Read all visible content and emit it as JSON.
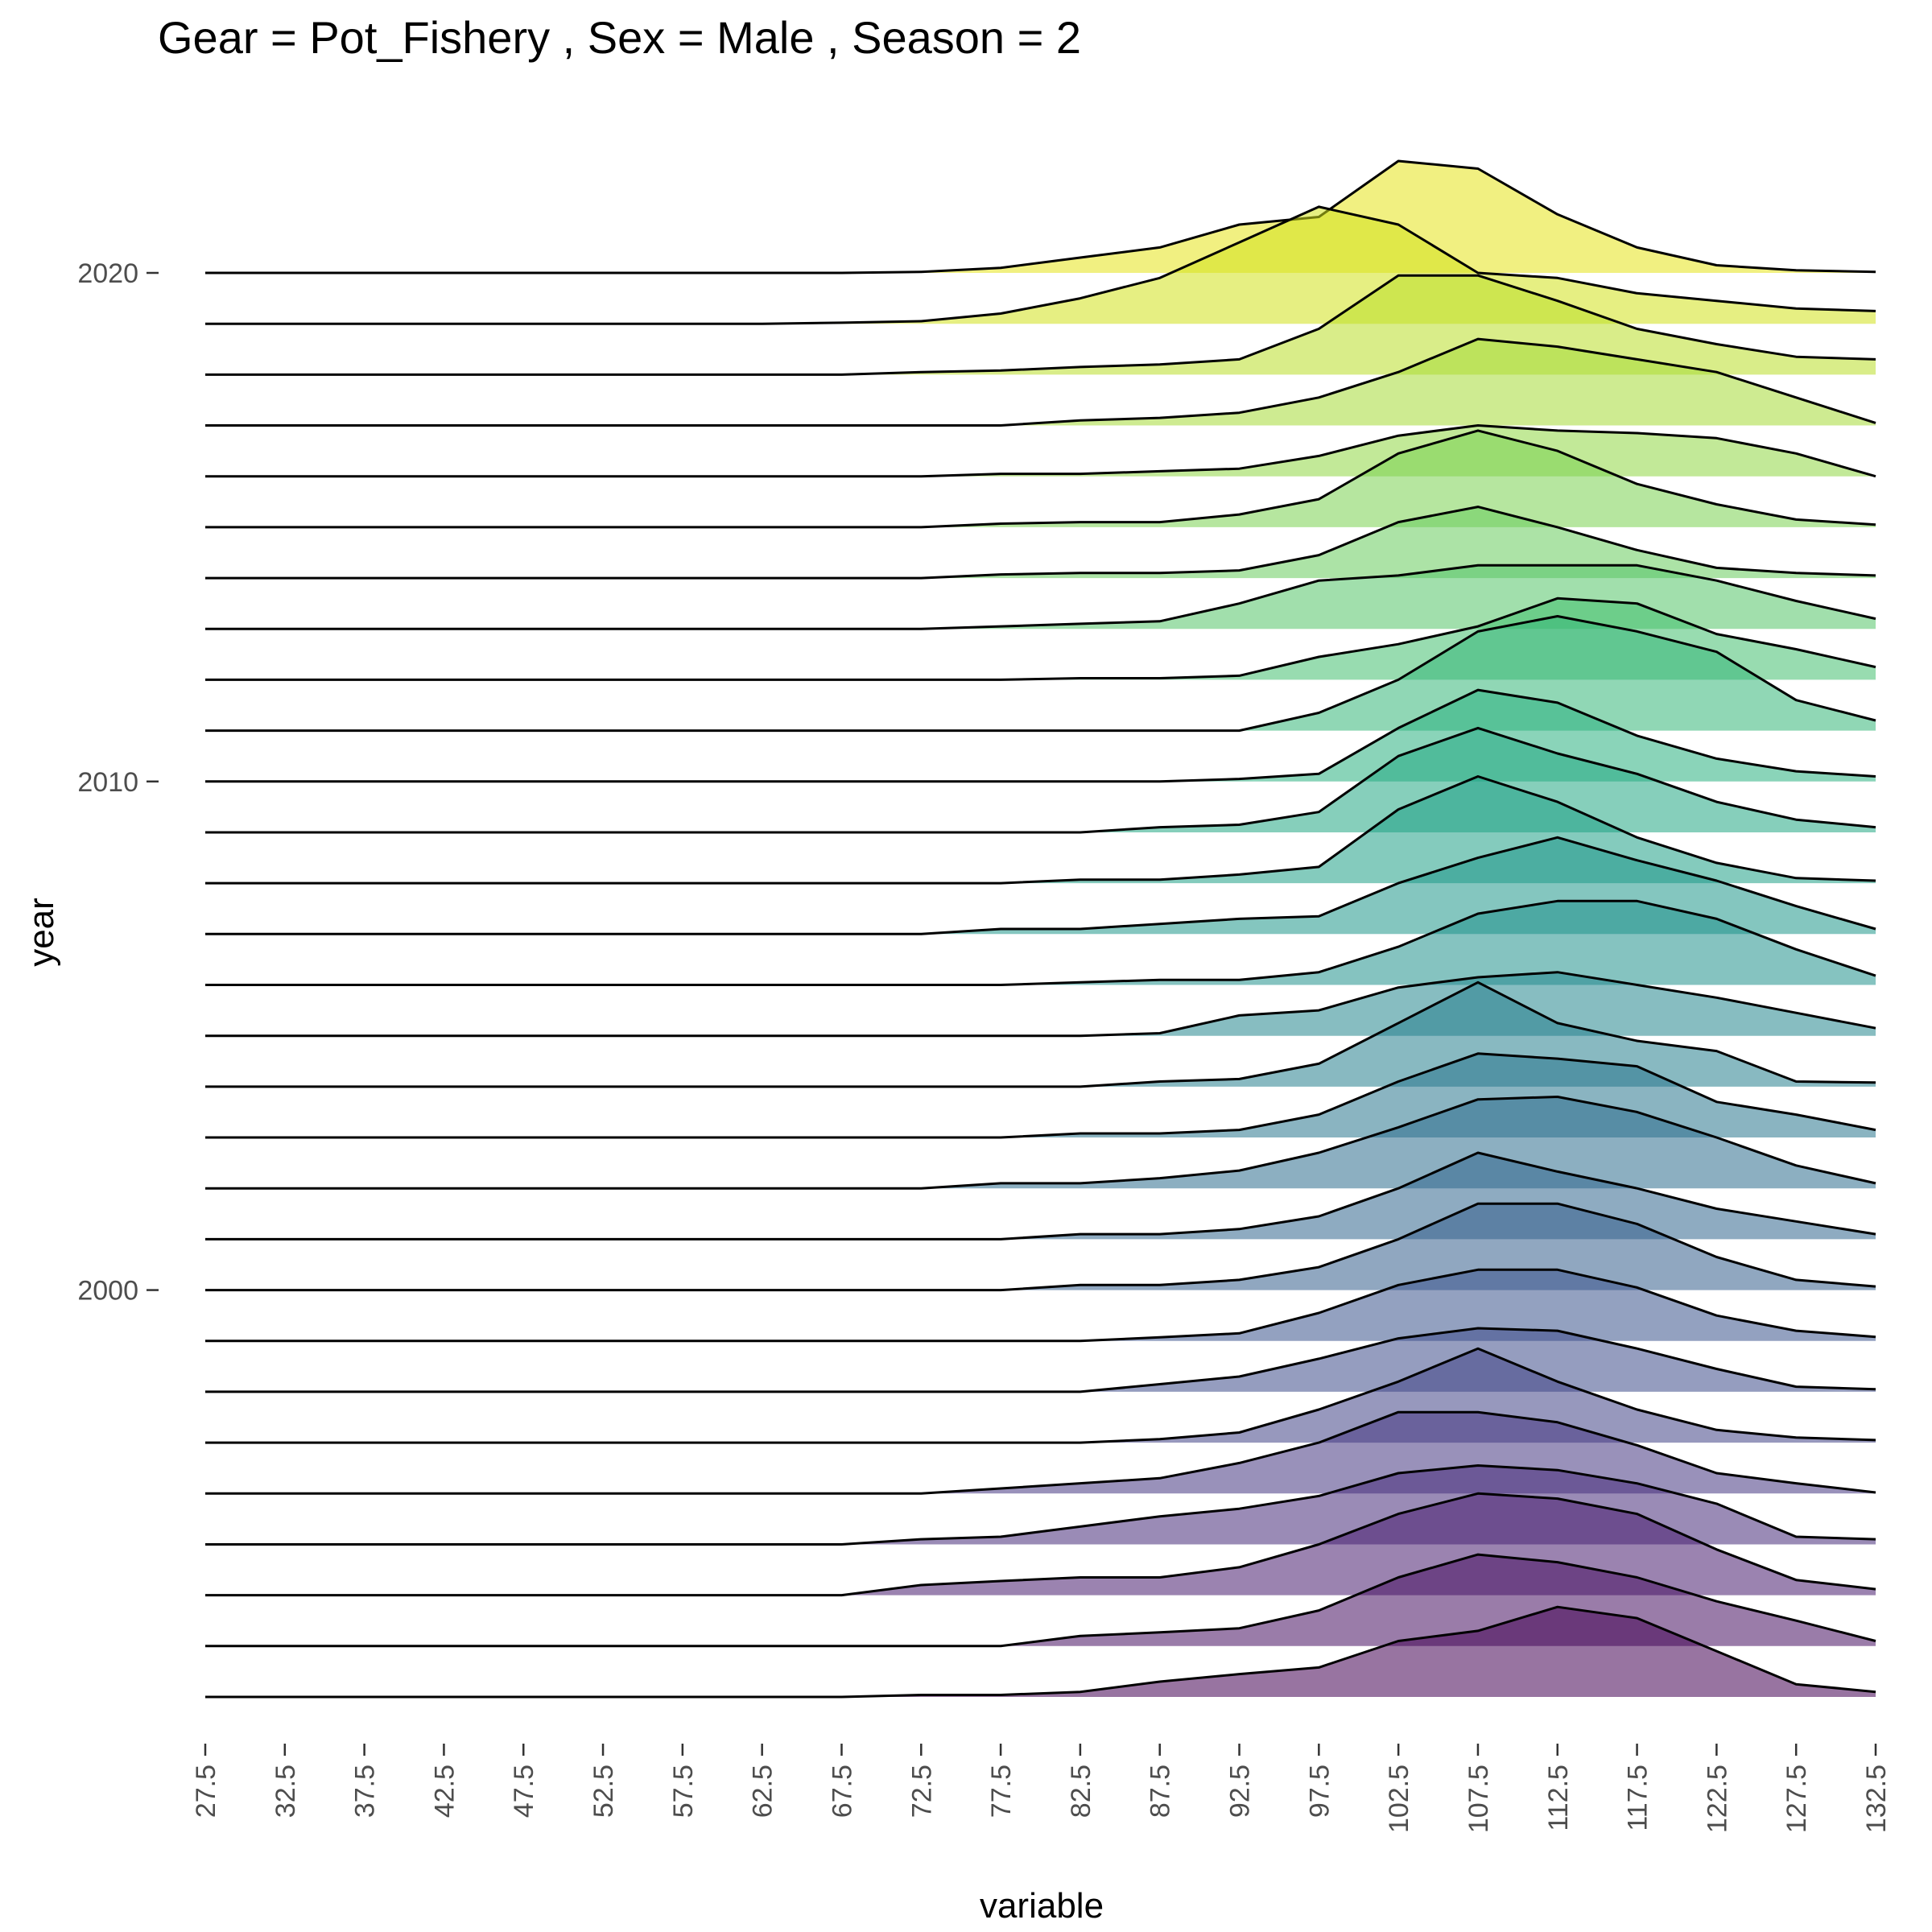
{
  "chart_data": {
    "type": "ridgeline",
    "title": "Gear = Pot_Fishery , Sex = Male , Season = 2",
    "xlabel": "variable",
    "ylabel": "year",
    "x": [
      27.5,
      32.5,
      37.5,
      42.5,
      47.5,
      52.5,
      57.5,
      62.5,
      67.5,
      72.5,
      77.5,
      82.5,
      87.5,
      92.5,
      97.5,
      102.5,
      107.5,
      112.5,
      117.5,
      122.5,
      127.5,
      132.5
    ],
    "x_tick_labels": [
      "27.5",
      "32.5",
      "37.5",
      "42.5",
      "47.5",
      "52.5",
      "57.5",
      "62.5",
      "67.5",
      "72.5",
      "77.5",
      "82.5",
      "87.5",
      "92.5",
      "97.5",
      "102.5",
      "107.5",
      "112.5",
      "117.5",
      "122.5",
      "127.5",
      "132.5"
    ],
    "y_ticks": [
      2000,
      2010,
      2020
    ],
    "y_tick_labels": [
      "2000",
      "2010",
      "2020"
    ],
    "ylim": [
      1991,
      2024
    ],
    "ridge_scale": 1,
    "colormap": "viridis",
    "grid": false,
    "legend": "none",
    "series": [
      {
        "year": 1992,
        "fill": "#440154",
        "values": [
          0,
          0,
          0,
          0,
          0,
          0,
          0,
          0,
          0,
          0.04,
          0.04,
          0.1,
          0.3,
          0.45,
          0.58,
          1.1,
          1.3,
          1.77,
          1.55,
          0.9,
          0.25,
          0.1
        ]
      },
      {
        "year": 1993,
        "fill": "#471063",
        "values": [
          0,
          0,
          0,
          0,
          0,
          0,
          0,
          0,
          0,
          0,
          0,
          0.2,
          0.27,
          0.35,
          0.7,
          1.35,
          1.8,
          1.65,
          1.35,
          0.88,
          0.5,
          0.1
        ]
      },
      {
        "year": 1994,
        "fill": "#481d6f",
        "values": [
          0,
          0,
          0,
          0,
          0,
          0,
          0,
          0,
          0,
          0.2,
          0.28,
          0.35,
          0.35,
          0.55,
          1.0,
          1.6,
          2.0,
          1.9,
          1.6,
          0.9,
          0.3,
          0.12
        ]
      },
      {
        "year": 1995,
        "fill": "#472c7a",
        "values": [
          0,
          0,
          0,
          0,
          0,
          0,
          0,
          0,
          0,
          0.1,
          0.15,
          0.35,
          0.55,
          0.7,
          0.95,
          1.4,
          1.55,
          1.46,
          1.2,
          0.8,
          0.15,
          0.1
        ]
      },
      {
        "year": 1996,
        "fill": "#453781",
        "values": [
          0,
          0,
          0,
          0,
          0,
          0,
          0,
          0,
          0,
          0,
          0.1,
          0.2,
          0.3,
          0.6,
          1.0,
          1.6,
          1.6,
          1.4,
          0.95,
          0.4,
          0.2,
          0.02
        ]
      },
      {
        "year": 1997,
        "fill": "#414487",
        "values": [
          0,
          0,
          0,
          0,
          0,
          0,
          0,
          0,
          0,
          0,
          0,
          0,
          0.07,
          0.2,
          0.65,
          1.2,
          1.85,
          1.2,
          0.65,
          0.25,
          0.1,
          0.05
        ]
      },
      {
        "year": 1998,
        "fill": "#3e4c8a",
        "values": [
          0,
          0,
          0,
          0,
          0,
          0,
          0,
          0,
          0,
          0,
          0,
          0,
          0.15,
          0.3,
          0.65,
          1.05,
          1.25,
          1.2,
          0.85,
          0.45,
          0.1,
          0.05
        ]
      },
      {
        "year": 1999,
        "fill": "#3a548c",
        "values": [
          0,
          0,
          0,
          0,
          0,
          0,
          0,
          0,
          0,
          0,
          0,
          0,
          0.07,
          0.15,
          0.55,
          1.1,
          1.4,
          1.4,
          1.05,
          0.5,
          0.2,
          0.08
        ]
      },
      {
        "year": 2000,
        "fill": "#355e8d",
        "values": [
          0,
          0,
          0,
          0,
          0,
          0,
          0,
          0,
          0,
          0,
          0,
          0.1,
          0.1,
          0.2,
          0.45,
          1.0,
          1.7,
          1.7,
          1.3,
          0.65,
          0.2,
          0.07
        ]
      },
      {
        "year": 2001,
        "fill": "#31668e",
        "values": [
          0,
          0,
          0,
          0,
          0,
          0,
          0,
          0,
          0,
          0,
          0,
          0.1,
          0.1,
          0.2,
          0.45,
          1.0,
          1.7,
          1.33,
          1.0,
          0.6,
          0.35,
          0.1
        ]
      },
      {
        "year": 2002,
        "fill": "#2e6d8e",
        "values": [
          0,
          0,
          0,
          0,
          0,
          0,
          0,
          0,
          0,
          0,
          0.1,
          0.1,
          0.2,
          0.35,
          0.7,
          1.2,
          1.75,
          1.8,
          1.5,
          1.0,
          0.45,
          0.1
        ]
      },
      {
        "year": 2003,
        "fill": "#2a768e",
        "values": [
          0,
          0,
          0,
          0,
          0,
          0,
          0,
          0,
          0,
          0,
          0,
          0.08,
          0.08,
          0.15,
          0.45,
          1.1,
          1.65,
          1.55,
          1.4,
          0.7,
          0.45,
          0.15
        ]
      },
      {
        "year": 2004,
        "fill": "#277f8e",
        "values": [
          0,
          0,
          0,
          0,
          0,
          0,
          0,
          0,
          0,
          0,
          0,
          0,
          0.1,
          0.15,
          0.45,
          1.25,
          2.05,
          1.25,
          0.9,
          0.7,
          0.1,
          0.08
        ]
      },
      {
        "year": 2005,
        "fill": "#24868e",
        "values": [
          0,
          0,
          0,
          0,
          0,
          0,
          0,
          0,
          0,
          0,
          0,
          0,
          0.05,
          0.4,
          0.5,
          0.95,
          1.15,
          1.25,
          1.0,
          0.75,
          0.45,
          0.15
        ]
      },
      {
        "year": 2006,
        "fill": "#21918c",
        "values": [
          0,
          0,
          0,
          0,
          0,
          0,
          0,
          0,
          0,
          0,
          0,
          0.05,
          0.1,
          0.1,
          0.25,
          0.75,
          1.4,
          1.65,
          1.65,
          1.3,
          0.7,
          0.18
        ]
      },
      {
        "year": 2007,
        "fill": "#1f988b",
        "values": [
          0,
          0,
          0,
          0,
          0,
          0,
          0,
          0,
          0,
          0,
          0.1,
          0.1,
          0.2,
          0.3,
          0.35,
          1.0,
          1.5,
          1.9,
          1.45,
          1.05,
          0.55,
          0.1
        ]
      },
      {
        "year": 2008,
        "fill": "#1fa187",
        "values": [
          0,
          0,
          0,
          0,
          0,
          0,
          0,
          0,
          0,
          0,
          0,
          0.07,
          0.07,
          0.17,
          0.32,
          1.45,
          2.1,
          1.6,
          0.9,
          0.4,
          0.1,
          0.05
        ]
      },
      {
        "year": 2009,
        "fill": "#22a884",
        "values": [
          0,
          0,
          0,
          0,
          0,
          0,
          0,
          0,
          0,
          0,
          0,
          0,
          0.1,
          0.15,
          0.4,
          1.5,
          2.05,
          1.55,
          1.15,
          0.6,
          0.25,
          0.1
        ]
      },
      {
        "year": 2010,
        "fill": "#2ab07f",
        "values": [
          0,
          0,
          0,
          0,
          0,
          0,
          0,
          0,
          0,
          0,
          0,
          0,
          0,
          0.05,
          0.15,
          1.05,
          1.8,
          1.55,
          0.9,
          0.45,
          0.2,
          0.1
        ]
      },
      {
        "year": 2011,
        "fill": "#35b779",
        "values": [
          0,
          0,
          0,
          0,
          0,
          0,
          0,
          0,
          0,
          0,
          0,
          0,
          0,
          0,
          0.35,
          1.0,
          1.95,
          2.25,
          1.95,
          1.55,
          0.6,
          0.2
        ]
      },
      {
        "year": 2012,
        "fill": "#44bf70",
        "values": [
          0,
          0,
          0,
          0,
          0,
          0,
          0,
          0,
          0,
          0,
          0,
          0.03,
          0.03,
          0.08,
          0.45,
          0.7,
          1.05,
          1.6,
          1.5,
          0.9,
          0.6,
          0.25
        ]
      },
      {
        "year": 2013,
        "fill": "#54c568",
        "values": [
          0,
          0,
          0,
          0,
          0,
          0,
          0,
          0,
          0,
          0,
          0.05,
          0.1,
          0.15,
          0.5,
          0.95,
          1.05,
          1.25,
          1.25,
          1.25,
          0.95,
          0.55,
          0.2
        ]
      },
      {
        "year": 2014,
        "fill": "#67cc5c",
        "values": [
          0,
          0,
          0,
          0,
          0,
          0,
          0,
          0,
          0,
          0,
          0.07,
          0.1,
          0.1,
          0.15,
          0.45,
          1.1,
          1.4,
          1.0,
          0.55,
          0.2,
          0.1,
          0.05
        ]
      },
      {
        "year": 2015,
        "fill": "#7ad151",
        "values": [
          0,
          0,
          0,
          0,
          0,
          0,
          0,
          0,
          0,
          0,
          0.07,
          0.1,
          0.1,
          0.25,
          0.55,
          1.45,
          1.9,
          1.5,
          0.85,
          0.45,
          0.15,
          0.05
        ]
      },
      {
        "year": 2016,
        "fill": "#8fd744",
        "values": [
          0,
          0,
          0,
          0,
          0,
          0,
          0,
          0,
          0,
          0,
          0.05,
          0.05,
          0.1,
          0.15,
          0.4,
          0.8,
          1.0,
          0.9,
          0.85,
          0.75,
          0.45,
          0.0
        ]
      },
      {
        "year": 2017,
        "fill": "#a5db36",
        "values": [
          0,
          0,
          0,
          0,
          0,
          0,
          0,
          0,
          0,
          0,
          0,
          0.1,
          0.15,
          0.25,
          0.55,
          1.05,
          1.7,
          1.55,
          1.3,
          1.05,
          0.55,
          0.05
        ]
      },
      {
        "year": 2018,
        "fill": "#bade28",
        "values": [
          0,
          0,
          0,
          0,
          0,
          0,
          0,
          0,
          0,
          0.05,
          0.08,
          0.15,
          0.2,
          0.3,
          0.9,
          1.95,
          1.95,
          1.45,
          0.9,
          0.6,
          0.35,
          0.3
        ]
      },
      {
        "year": 2019,
        "fill": "#d2e21b",
        "values": [
          0,
          0,
          0,
          0,
          0,
          0,
          0,
          0,
          0.02,
          0.05,
          0.2,
          0.5,
          0.9,
          1.6,
          2.3,
          1.95,
          1.0,
          0.9,
          0.6,
          0.45,
          0.3,
          0.25
        ]
      },
      {
        "year": 2020,
        "fill": "#e6e419",
        "values": [
          0,
          0,
          0,
          0,
          0,
          0,
          0,
          0,
          0,
          0.02,
          0.1,
          0.3,
          0.5,
          0.95,
          1.1,
          2.2,
          2.05,
          1.15,
          0.5,
          0.15,
          0.05,
          0.02
        ]
      }
    ]
  }
}
